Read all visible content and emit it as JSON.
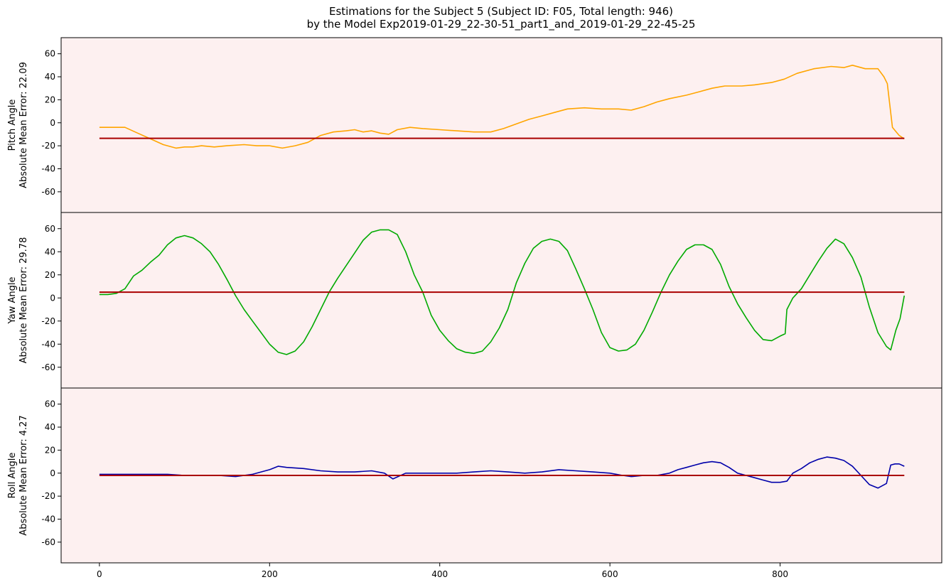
{
  "title_line1": "Estimations for the Subject 5 (Subject ID: F05, Total length: 946)",
  "title_line2": "by the Model Exp2019-01-29_22-30-51_part1_and_2019-01-29_22-45-25",
  "colors": {
    "background": "#fdf0f0",
    "reference": "#aa0000",
    "pitch": "#ffa500",
    "yaw": "#00aa00",
    "roll": "#0000aa"
  },
  "chart_data": [
    {
      "type": "line",
      "ylabel": [
        "Pitch Angle",
        "Absolute Mean Error: 22.09"
      ],
      "xlim": [
        -45,
        990
      ],
      "ylim": [
        -78,
        74
      ],
      "yticks": [
        60,
        40,
        20,
        0,
        -20,
        -40,
        -60
      ],
      "xticks": [
        0,
        200,
        400,
        600,
        800
      ],
      "series": [
        {
          "role": "estimate",
          "color": "pitch",
          "x": [
            0,
            15,
            30,
            45,
            60,
            75,
            90,
            100,
            110,
            120,
            135,
            150,
            170,
            185,
            200,
            215,
            230,
            245,
            260,
            275,
            290,
            300,
            310,
            320,
            330,
            340,
            350,
            365,
            380,
            400,
            420,
            440,
            460,
            475,
            490,
            505,
            520,
            535,
            550,
            570,
            590,
            610,
            625,
            640,
            655,
            670,
            690,
            705,
            720,
            735,
            755,
            770,
            790,
            805,
            820,
            840,
            860,
            875,
            885,
            900,
            915,
            922,
            926,
            932,
            940,
            946
          ],
          "y": [
            -4,
            -4,
            -4,
            -9,
            -14,
            -19,
            -22,
            -21,
            -21,
            -20,
            -21,
            -20,
            -19,
            -20,
            -20,
            -22,
            -20,
            -17,
            -11,
            -8,
            -7,
            -6,
            -8,
            -7,
            -9,
            -10,
            -6,
            -4,
            -5,
            -6,
            -7,
            -8,
            -8,
            -5,
            -1,
            3,
            6,
            9,
            12,
            13,
            12,
            12,
            11,
            14,
            18,
            21,
            24,
            27,
            30,
            32,
            32,
            33,
            35,
            38,
            43,
            47,
            49,
            48,
            50,
            47,
            47,
            40,
            34,
            -4,
            -11,
            -14
          ]
        },
        {
          "role": "reference",
          "color": "reference",
          "x": [
            0,
            946
          ],
          "y": [
            -13.5,
            -13.5
          ]
        }
      ]
    },
    {
      "type": "line",
      "ylabel": [
        "Yaw Angle",
        "Absolute Mean Error: 29.78"
      ],
      "xlim": [
        -45,
        990
      ],
      "ylim": [
        -78,
        74
      ],
      "yticks": [
        60,
        40,
        20,
        0,
        -20,
        -40,
        -60
      ],
      "xticks": [
        0,
        200,
        400,
        600,
        800
      ],
      "series": [
        {
          "role": "estimate",
          "color": "yaw",
          "x": [
            0,
            10,
            20,
            30,
            40,
            50,
            60,
            70,
            80,
            90,
            100,
            110,
            120,
            130,
            140,
            150,
            160,
            170,
            180,
            190,
            200,
            210,
            220,
            230,
            240,
            250,
            260,
            270,
            280,
            290,
            300,
            310,
            320,
            330,
            340,
            350,
            360,
            370,
            380,
            390,
            400,
            410,
            420,
            430,
            440,
            450,
            460,
            470,
            480,
            490,
            500,
            510,
            520,
            530,
            540,
            550,
            560,
            570,
            580,
            590,
            600,
            610,
            620,
            630,
            640,
            650,
            660,
            670,
            680,
            690,
            700,
            710,
            720,
            730,
            740,
            750,
            760,
            770,
            780,
            790,
            800,
            806,
            808,
            815,
            825,
            835,
            845,
            855,
            865,
            875,
            885,
            895,
            905,
            915,
            925,
            930,
            936,
            941,
            946
          ],
          "y": [
            3,
            3,
            4,
            8,
            19,
            24,
            31,
            37,
            46,
            52,
            54,
            52,
            47,
            40,
            29,
            16,
            2,
            -10,
            -20,
            -30,
            -40,
            -47,
            -49,
            -46,
            -38,
            -25,
            -10,
            5,
            17,
            28,
            39,
            50,
            57,
            59,
            59,
            55,
            40,
            20,
            5,
            -15,
            -28,
            -37,
            -44,
            -47,
            -48,
            -46,
            -38,
            -26,
            -10,
            13,
            30,
            43,
            49,
            51,
            49,
            41,
            25,
            8,
            -10,
            -30,
            -43,
            -46,
            -45,
            -40,
            -28,
            -12,
            5,
            20,
            32,
            42,
            46,
            46,
            42,
            29,
            10,
            -5,
            -17,
            -28,
            -36,
            -37,
            -33,
            -31,
            -10,
            0,
            8,
            20,
            32,
            43,
            51,
            47,
            35,
            18,
            -8,
            -30,
            -42,
            -45,
            -28,
            -18,
            2
          ]
        },
        {
          "role": "reference",
          "color": "reference",
          "x": [
            0,
            946
          ],
          "y": [
            5,
            5
          ]
        }
      ]
    },
    {
      "type": "line",
      "ylabel": [
        "Roll Angle",
        "Absolute Mean Error: 4.27"
      ],
      "xlim": [
        -45,
        990
      ],
      "ylim": [
        -78,
        74
      ],
      "yticks": [
        60,
        40,
        20,
        0,
        -20,
        -40,
        -60
      ],
      "xticks": [
        0,
        200,
        400,
        600,
        800
      ],
      "series": [
        {
          "role": "estimate",
          "color": "roll",
          "x": [
            0,
            20,
            40,
            60,
            80,
            100,
            120,
            140,
            160,
            180,
            200,
            210,
            220,
            240,
            260,
            280,
            300,
            320,
            335,
            345,
            360,
            380,
            400,
            420,
            440,
            460,
            480,
            500,
            520,
            540,
            560,
            580,
            600,
            615,
            625,
            640,
            655,
            670,
            680,
            690,
            700,
            710,
            720,
            730,
            740,
            750,
            760,
            770,
            780,
            790,
            800,
            808,
            815,
            825,
            835,
            845,
            855,
            865,
            875,
            885,
            895,
            905,
            915,
            925,
            930,
            935,
            940,
            946
          ],
          "y": [
            -1,
            -1,
            -1,
            -1,
            -1,
            -2,
            -2,
            -2,
            -3,
            -1,
            3,
            6,
            5,
            4,
            2,
            1,
            1,
            2,
            0,
            -5,
            0,
            0,
            0,
            0,
            1,
            2,
            1,
            0,
            1,
            3,
            2,
            1,
            0,
            -2,
            -3,
            -2,
            -2,
            0,
            3,
            5,
            7,
            9,
            10,
            9,
            5,
            0,
            -2,
            -4,
            -6,
            -8,
            -8,
            -7,
            0,
            4,
            9,
            12,
            14,
            13,
            11,
            6,
            -2,
            -10,
            -13,
            -9,
            7,
            8,
            8,
            6
          ]
        },
        {
          "role": "reference",
          "color": "reference",
          "x": [
            0,
            946
          ],
          "y": [
            -2,
            -2
          ]
        }
      ]
    }
  ]
}
